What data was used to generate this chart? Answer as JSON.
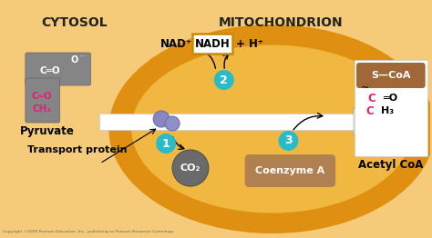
{
  "bg_light": "#f5cb7a",
  "bg_mito_ring_outer": "#e09010",
  "bg_mito_ring_inner": "#f0b840",
  "cytosol_label": "CYTOSOL",
  "mito_label": "MITOCHONDRION",
  "teal_circle_color": "#2abbc8",
  "nad_label": "NAD⁺",
  "nadh_label": "NADH",
  "h_label": "+ H⁺",
  "co2_label": "CO₂",
  "coenzyme_label": "Coenzyme A",
  "coenzyme_bg": "#b08050",
  "acetyl_label": "Acetyl CoA",
  "transport_label": "Transport protein",
  "pyruvate_label": "Pyruvate",
  "s_coa_label": "S—CoA",
  "s_coa_bg": "#a06838",
  "pink": "#e0207a",
  "step1": "1",
  "step2": "2",
  "step3": "3",
  "copyright": "Copyright ©2008 Pearson Education, Inc., publishing as Pearson Benjamin Cummings."
}
